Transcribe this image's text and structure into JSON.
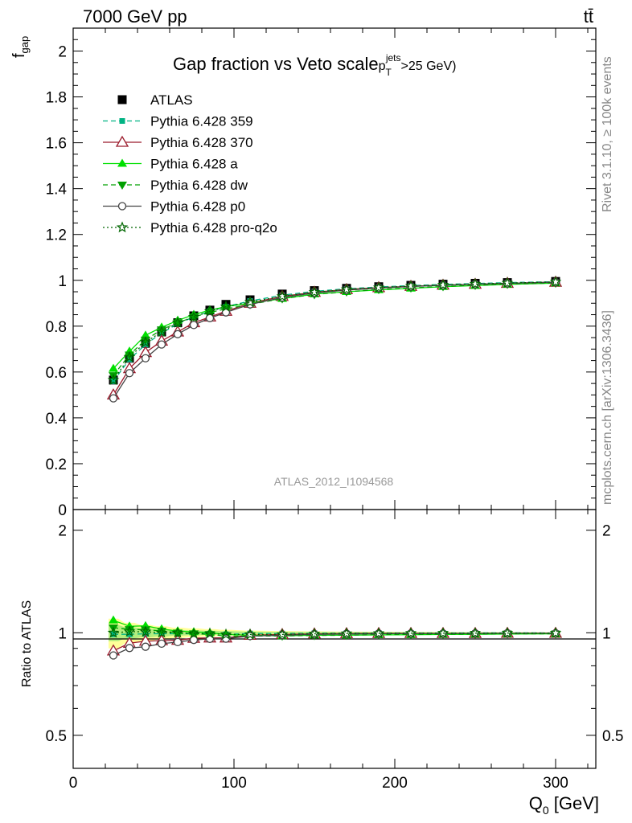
{
  "header": {
    "energy_label": "7000 GeV pp",
    "process_label": "tt̄"
  },
  "side_texts": {
    "rivet": "Rivet 3.1.10, ≥ 100k events",
    "mcplots": "mcplots.cern.ch [arXiv:1306.3436]"
  },
  "chart_data": [
    {
      "type": "line",
      "panel": "main",
      "title": "Gap fraction vs Veto scale",
      "title_suffix": {
        "p": "p",
        "sub": "T",
        "sup": "jets",
        "rest": ">25 GeV)"
      },
      "ylabel": {
        "main": "f",
        "sub": "gap"
      },
      "watermark": "ATLAS_2012_I1094568",
      "xlim": [
        0,
        325
      ],
      "ylim": [
        0,
        2.1
      ],
      "x_ticks": [
        0,
        100,
        200,
        300
      ],
      "y_ticks": [
        "0",
        "0.2",
        "0.4",
        "0.6",
        "0.8",
        "1",
        "1.2",
        "1.4",
        "1.6",
        "1.8",
        "2"
      ],
      "legend_position": "top-left",
      "x": [
        25,
        35,
        45,
        55,
        65,
        75,
        85,
        95,
        110,
        130,
        150,
        170,
        190,
        210,
        230,
        250,
        270,
        300
      ],
      "series": [
        {
          "name": "ATLAS",
          "marker": "square",
          "color": "#000000",
          "style": "data",
          "values": [
            0.565,
            0.66,
            0.725,
            0.775,
            0.815,
            0.845,
            0.87,
            0.895,
            0.915,
            0.94,
            0.955,
            0.965,
            0.972,
            0.978,
            0.983,
            0.987,
            0.99,
            0.995
          ]
        },
        {
          "name": "Pythia 6.428 359",
          "marker": "square-small",
          "color": "#00b383",
          "style": "dashed",
          "values": [
            0.56,
            0.655,
            0.72,
            0.77,
            0.81,
            0.84,
            0.865,
            0.885,
            0.91,
            0.935,
            0.952,
            0.963,
            0.971,
            0.977,
            0.982,
            0.986,
            0.99,
            0.994
          ]
        },
        {
          "name": "Pythia 6.428 370",
          "marker": "triangle-open",
          "color": "#9b1b2c",
          "style": "solid",
          "values": [
            0.5,
            0.615,
            0.685,
            0.735,
            0.775,
            0.815,
            0.84,
            0.865,
            0.9,
            0.93,
            0.948,
            0.96,
            0.968,
            0.974,
            0.979,
            0.983,
            0.987,
            0.992
          ]
        },
        {
          "name": "Pythia 6.428 a",
          "marker": "triangle",
          "color": "#00e000",
          "style": "solid",
          "values": [
            0.615,
            0.69,
            0.76,
            0.795,
            0.825,
            0.85,
            0.87,
            0.885,
            0.9,
            0.92,
            0.94,
            0.95,
            0.958,
            0.965,
            0.972,
            0.977,
            0.982,
            0.988
          ]
        },
        {
          "name": "Pythia 6.428 dw",
          "marker": "triangle-down",
          "color": "#00a000",
          "style": "dashed",
          "values": [
            0.585,
            0.675,
            0.74,
            0.785,
            0.815,
            0.84,
            0.86,
            0.875,
            0.895,
            0.92,
            0.938,
            0.95,
            0.96,
            0.967,
            0.973,
            0.978,
            0.983,
            0.988
          ]
        },
        {
          "name": "Pythia 6.428 p0",
          "marker": "circle-open",
          "color": "#444444",
          "style": "solid",
          "values": [
            0.485,
            0.595,
            0.66,
            0.72,
            0.765,
            0.805,
            0.835,
            0.86,
            0.895,
            0.925,
            0.945,
            0.957,
            0.966,
            0.973,
            0.978,
            0.983,
            0.987,
            0.992
          ]
        },
        {
          "name": "Pythia 6.428 pro-q2o",
          "marker": "star",
          "color": "#006600",
          "style": "dotted",
          "values": [
            0.565,
            0.665,
            0.73,
            0.775,
            0.815,
            0.84,
            0.865,
            0.885,
            0.905,
            0.93,
            0.948,
            0.96,
            0.968,
            0.975,
            0.98,
            0.984,
            0.988,
            0.993
          ]
        }
      ]
    },
    {
      "type": "line",
      "panel": "ratio",
      "ylabel": "Ratio to ATLAS",
      "xlabel": {
        "main": "Q",
        "sub": "0",
        "rest": " [GeV]"
      },
      "xlim": [
        0,
        325
      ],
      "ylim": [
        0.4,
        2.3
      ],
      "y_ticks": [
        "0.5",
        "1",
        "2"
      ],
      "x_ticks": [
        "0",
        "100",
        "200",
        "300"
      ],
      "x": [
        25,
        35,
        45,
        55,
        65,
        75,
        85,
        95,
        110,
        130,
        150,
        170,
        190,
        210,
        230,
        250,
        270,
        300
      ],
      "band_rel_error": [
        0.1,
        0.07,
        0.055,
        0.045,
        0.035,
        0.03,
        0.025,
        0.02,
        0.015,
        0.012,
        0.01,
        0.008,
        0.007,
        0.006,
        0.005,
        0.004,
        0.004,
        0.003
      ],
      "series": [
        {
          "name": "Pythia 6.428 359",
          "values": [
            0.99,
            0.99,
            0.993,
            0.994,
            0.994,
            0.994,
            0.995,
            0.989,
            0.995,
            0.995,
            0.997,
            0.998,
            0.999,
            0.999,
            0.999,
            0.999,
            1.0,
            0.999
          ]
        },
        {
          "name": "Pythia 6.428 370",
          "values": [
            0.885,
            0.932,
            0.945,
            0.948,
            0.951,
            0.964,
            0.966,
            0.966,
            0.984,
            0.989,
            0.993,
            0.995,
            0.996,
            0.996,
            0.996,
            0.996,
            0.997,
            0.997
          ]
        },
        {
          "name": "Pythia 6.428 a",
          "values": [
            1.088,
            1.045,
            1.048,
            1.026,
            1.012,
            1.006,
            1.0,
            0.989,
            0.984,
            0.979,
            0.984,
            0.984,
            0.986,
            0.987,
            0.989,
            0.99,
            0.992,
            0.993
          ]
        },
        {
          "name": "Pythia 6.428 dw",
          "values": [
            1.035,
            1.023,
            1.021,
            1.013,
            1.0,
            0.994,
            0.989,
            0.978,
            0.978,
            0.979,
            0.982,
            0.984,
            0.988,
            0.989,
            0.99,
            0.991,
            0.993,
            0.993
          ]
        },
        {
          "name": "Pythia 6.428 p0",
          "values": [
            0.858,
            0.902,
            0.91,
            0.929,
            0.939,
            0.953,
            0.96,
            0.961,
            0.978,
            0.984,
            0.99,
            0.992,
            0.994,
            0.995,
            0.995,
            0.996,
            0.997,
            0.997
          ]
        },
        {
          "name": "Pythia 6.428 pro-q2o",
          "values": [
            1.0,
            1.008,
            1.007,
            1.0,
            1.0,
            0.994,
            0.995,
            0.989,
            0.989,
            0.989,
            0.993,
            0.995,
            0.996,
            0.997,
            0.997,
            0.997,
            0.998,
            0.998
          ]
        }
      ]
    }
  ]
}
